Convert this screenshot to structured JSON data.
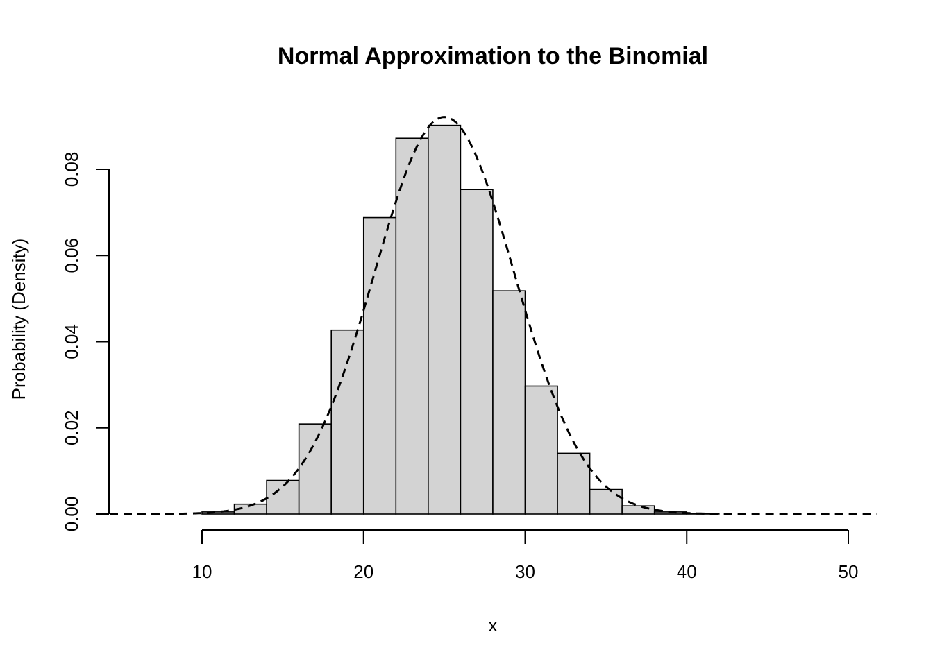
{
  "chart_data": {
    "type": "bar",
    "title": "Normal Approximation to the Binomial",
    "xlabel": "x",
    "ylabel": "Probability (Density)",
    "xlim": [
      4,
      52
    ],
    "ylim": [
      0,
      0.092
    ],
    "xticks": [
      10,
      20,
      30,
      40,
      50
    ],
    "yticks": [
      0.0,
      0.02,
      0.04,
      0.06,
      0.08
    ],
    "ytick_labels": [
      "0.00",
      "0.02",
      "0.04",
      "0.06",
      "0.08"
    ],
    "bin_width": 2,
    "bins": [
      {
        "x0": 10,
        "x1": 12,
        "density": 0.0005
      },
      {
        "x0": 12,
        "x1": 14,
        "density": 0.0023
      },
      {
        "x0": 14,
        "x1": 16,
        "density": 0.0078
      },
      {
        "x0": 16,
        "x1": 18,
        "density": 0.0209
      },
      {
        "x0": 18,
        "x1": 20,
        "density": 0.0427
      },
      {
        "x0": 20,
        "x1": 22,
        "density": 0.0688
      },
      {
        "x0": 22,
        "x1": 24,
        "density": 0.0872
      },
      {
        "x0": 24,
        "x1": 26,
        "density": 0.0902
      },
      {
        "x0": 26,
        "x1": 28,
        "density": 0.0753
      },
      {
        "x0": 28,
        "x1": 30,
        "density": 0.0518
      },
      {
        "x0": 30,
        "x1": 32,
        "density": 0.0297
      },
      {
        "x0": 32,
        "x1": 34,
        "density": 0.0141
      },
      {
        "x0": 34,
        "x1": 36,
        "density": 0.0057
      },
      {
        "x0": 36,
        "x1": 38,
        "density": 0.0019
      },
      {
        "x0": 38,
        "x1": 40,
        "density": 0.0005
      },
      {
        "x0": 40,
        "x1": 42,
        "density": 0.0001
      }
    ],
    "overlay": {
      "type": "line",
      "style": "dashed",
      "distribution": "normal",
      "mean": 25,
      "sd": 4.33,
      "x_range": [
        4,
        52
      ]
    },
    "grid": false,
    "legend": "none"
  }
}
